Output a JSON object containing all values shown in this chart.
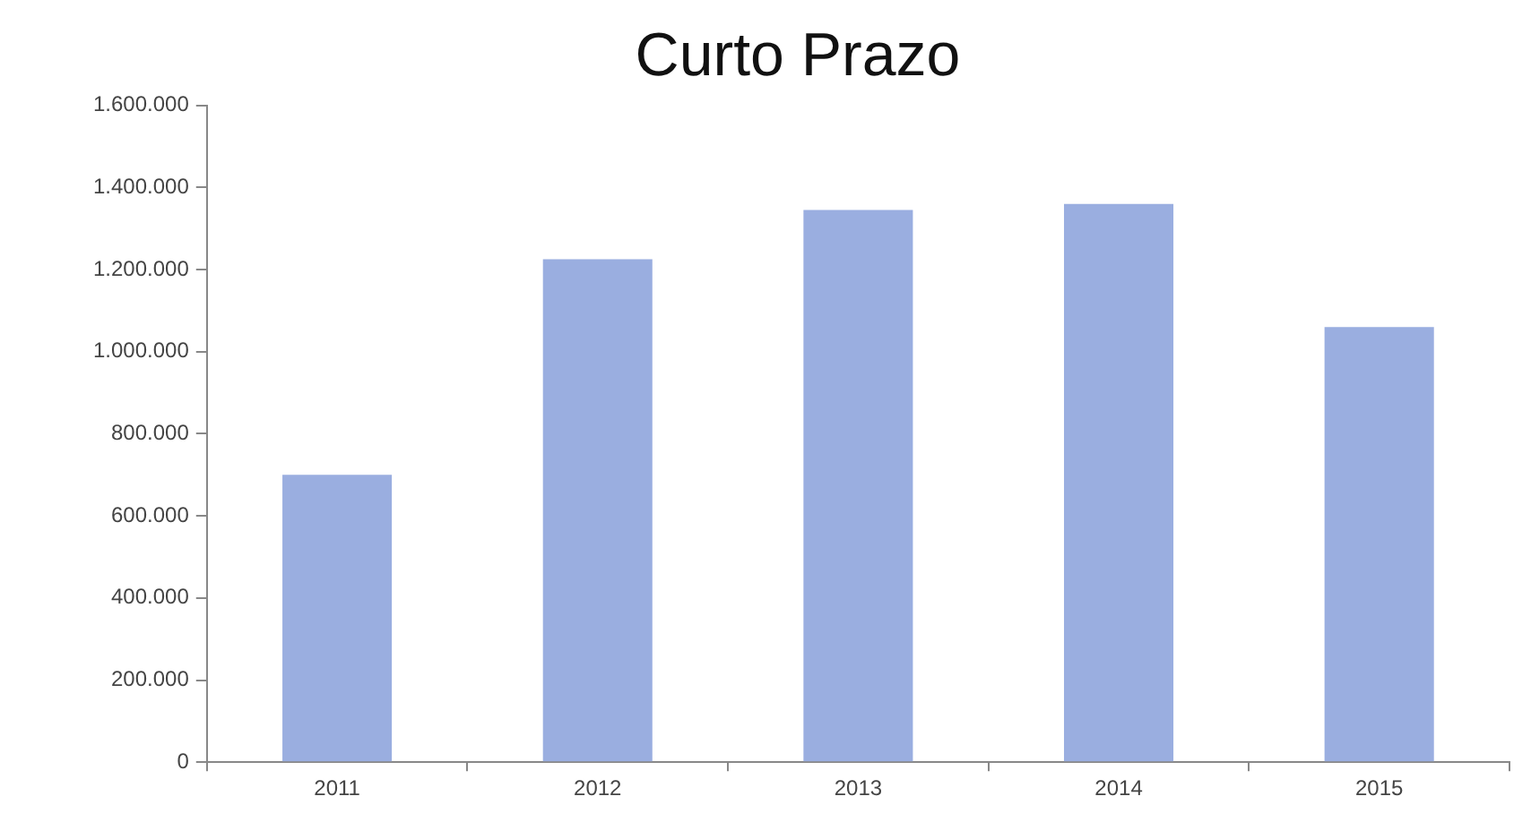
{
  "chart_data": {
    "type": "bar",
    "title": "Curto Prazo",
    "categories": [
      "2011",
      "2012",
      "2013",
      "2014",
      "2015"
    ],
    "values": [
      700000,
      1225000,
      1345000,
      1360000,
      1060000
    ],
    "color": "#9aaee0",
    "ylim": [
      0,
      1600000
    ],
    "yticks": [
      {
        "value": 0,
        "label": "0"
      },
      {
        "value": 200000,
        "label": "200.000"
      },
      {
        "value": 400000,
        "label": "400.000"
      },
      {
        "value": 600000,
        "label": "600.000"
      },
      {
        "value": 800000,
        "label": "800.000"
      },
      {
        "value": 1000000,
        "label": "1.000.000"
      },
      {
        "value": 1200000,
        "label": "1.200.000"
      },
      {
        "value": 1400000,
        "label": "1.400.000"
      },
      {
        "value": 1600000,
        "label": "1.600.000"
      }
    ],
    "legend": false
  }
}
